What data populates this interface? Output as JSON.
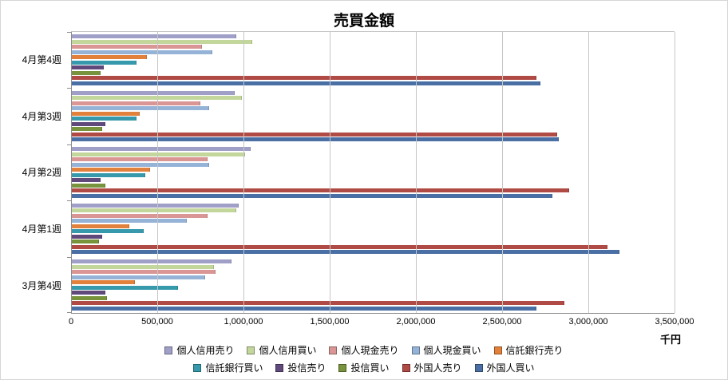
{
  "title": "売買金額",
  "axis_unit_label": "千円",
  "chart_data": {
    "type": "bar",
    "orientation": "horizontal",
    "title": "売買金額",
    "xlabel": "千円",
    "ylabel": "",
    "xlim": [
      0,
      3500000
    ],
    "x_ticks": [
      "0",
      "500,000",
      "1,000,000",
      "1,500,000",
      "2,000,000",
      "2,500,000",
      "3,000,000",
      "3,500,000"
    ],
    "grid": true,
    "legend_position": "bottom",
    "categories": [
      "4月第4週",
      "4月第3週",
      "4月第2週",
      "4月第1週",
      "3月第4週"
    ],
    "series": [
      {
        "name": "個人信用売り",
        "color": "#A09FC8",
        "values": [
          960000,
          950000,
          1040000,
          970000,
          930000
        ]
      },
      {
        "name": "個人信用買い",
        "color": "#C3D69B",
        "values": [
          1050000,
          990000,
          1010000,
          960000,
          830000
        ]
      },
      {
        "name": "個人現金売り",
        "color": "#D99694",
        "values": [
          760000,
          750000,
          790000,
          790000,
          840000
        ]
      },
      {
        "name": "個人現金買い",
        "color": "#95B3D7",
        "values": [
          820000,
          800000,
          800000,
          670000,
          780000
        ]
      },
      {
        "name": "信託銀行売り",
        "color": "#E2813B",
        "values": [
          440000,
          400000,
          460000,
          340000,
          370000
        ]
      },
      {
        "name": "信託銀行買い",
        "color": "#369AAC",
        "values": [
          380000,
          380000,
          430000,
          420000,
          620000
        ]
      },
      {
        "name": "投信売り",
        "color": "#5F4A7B",
        "values": [
          190000,
          200000,
          170000,
          180000,
          200000
        ]
      },
      {
        "name": "投信買い",
        "color": "#77933C",
        "values": [
          170000,
          180000,
          200000,
          160000,
          210000
        ]
      },
      {
        "name": "外国人売り",
        "color": "#B04A44",
        "values": [
          2700000,
          2820000,
          2890000,
          3110000,
          2860000
        ]
      },
      {
        "name": "外国人買い",
        "color": "#4A6FA5",
        "values": [
          2720000,
          2830000,
          2790000,
          3180000,
          2700000
        ]
      }
    ],
    "legend_rows": [
      [
        0,
        1,
        2,
        3,
        4
      ],
      [
        5,
        6,
        7,
        8,
        9
      ]
    ]
  }
}
